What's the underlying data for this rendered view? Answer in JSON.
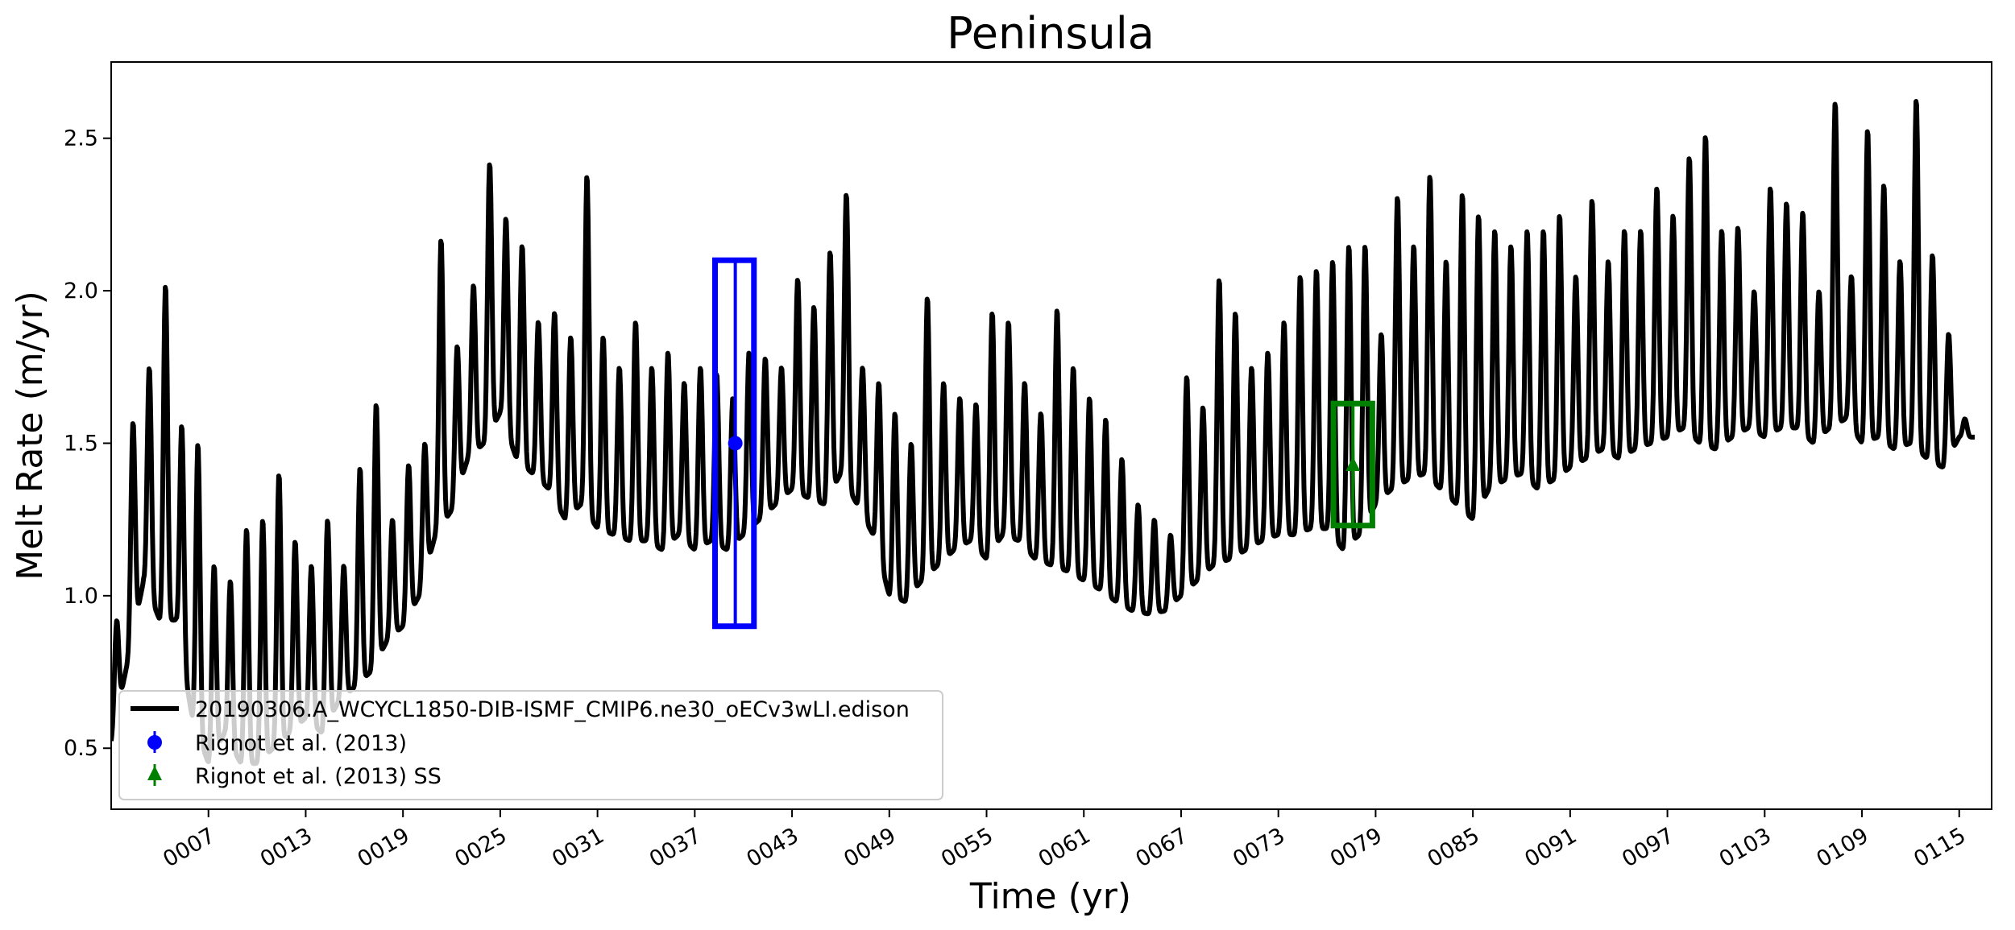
{
  "chart_data": {
    "type": "line",
    "title": "Peninsula",
    "xlabel": "Time (yr)",
    "ylabel": "Melt Rate (m/yr)",
    "xlim": [
      1,
      117
    ],
    "ylim": [
      0.3,
      2.75
    ],
    "yticks": [
      0.5,
      1.0,
      1.5,
      2.0,
      2.5
    ],
    "ytick_labels": [
      "0.5",
      "1.0",
      "1.5",
      "2.0",
      "2.5"
    ],
    "xticks": [
      7,
      13,
      19,
      25,
      31,
      37,
      43,
      49,
      55,
      61,
      67,
      73,
      79,
      85,
      91,
      97,
      103,
      109,
      115
    ],
    "xtick_labels": [
      "0007",
      "0013",
      "0019",
      "0025",
      "0031",
      "0037",
      "0043",
      "0049",
      "0055",
      "0061",
      "0067",
      "0073",
      "0079",
      "0085",
      "0091",
      "0097",
      "0103",
      "0109",
      "0115"
    ],
    "series": [
      {
        "name": "20190306.A_WCYCL1850-DIB-ISMF_CMIP6.ne30_oECv3wLI.edison",
        "color": "#000000",
        "year_start": 1,
        "annual_peak": [
          0.92,
          1.57,
          1.75,
          2.02,
          1.56,
          1.5,
          1.1,
          1.05,
          1.22,
          1.25,
          1.4,
          1.18,
          1.1,
          1.25,
          1.1,
          1.42,
          1.63,
          1.25,
          1.43,
          1.5,
          2.17,
          1.82,
          2.02,
          2.42,
          2.24,
          2.15,
          1.9,
          1.93,
          1.85,
          2.38,
          1.85,
          1.75,
          1.9,
          1.75,
          1.8,
          1.7,
          1.75,
          1.73,
          1.65,
          1.8,
          1.78,
          1.75,
          2.04,
          1.95,
          2.13,
          2.32,
          1.75,
          1.7,
          1.6,
          1.5,
          1.98,
          1.7,
          1.65,
          1.63,
          1.93,
          1.9,
          1.7,
          1.6,
          1.94,
          1.75,
          1.65,
          1.58,
          1.45,
          1.3,
          1.25,
          1.2,
          1.72,
          1.62,
          2.04,
          1.93,
          1.75,
          1.8,
          1.9,
          2.05,
          2.07,
          2.1,
          2.15,
          2.15,
          1.86,
          2.31,
          2.15,
          2.38,
          2.1,
          2.32,
          2.25,
          2.2,
          2.15,
          2.2,
          2.2,
          2.25,
          2.05,
          2.3,
          2.1,
          2.2,
          2.2,
          2.34,
          2.25,
          2.44,
          2.51,
          2.2,
          2.21,
          2.0,
          2.34,
          2.29,
          2.26,
          2.0,
          2.62,
          2.05,
          2.53,
          2.35,
          2.1,
          2.63,
          2.12,
          1.86,
          1.58
        ],
        "annual_trough": [
          0.52,
          0.78,
          1.05,
          0.92,
          0.92,
          0.6,
          0.45,
          0.55,
          0.45,
          0.45,
          0.5,
          0.55,
          0.6,
          0.55,
          0.65,
          0.7,
          0.75,
          0.85,
          0.9,
          1.0,
          1.2,
          1.28,
          1.45,
          1.5,
          1.6,
          1.45,
          1.4,
          1.35,
          1.25,
          1.3,
          1.22,
          1.2,
          1.18,
          1.18,
          1.15,
          1.2,
          1.15,
          1.18,
          1.15,
          1.2,
          1.25,
          1.3,
          1.35,
          1.32,
          1.3,
          1.4,
          1.3,
          1.2,
          1.0,
          0.98,
          1.05,
          1.1,
          1.15,
          1.18,
          1.12,
          1.2,
          1.18,
          1.12,
          1.1,
          1.08,
          1.05,
          1.02,
          0.98,
          0.95,
          0.94,
          0.95,
          1.0,
          1.05,
          1.1,
          1.12,
          1.15,
          1.18,
          1.2,
          1.2,
          1.22,
          1.22,
          1.15,
          1.2,
          1.3,
          1.35,
          1.38,
          1.4,
          1.35,
          1.3,
          1.25,
          1.35,
          1.38,
          1.4,
          1.35,
          1.38,
          1.42,
          1.45,
          1.48,
          1.45,
          1.48,
          1.5,
          1.52,
          1.55,
          1.5,
          1.48,
          1.52,
          1.55,
          1.52,
          1.55,
          1.55,
          1.5,
          1.55,
          1.58,
          1.5,
          1.52,
          1.48,
          1.5,
          1.45,
          1.42,
          1.52
        ]
      }
    ],
    "observations": [
      {
        "label": "Rignot et al. (2013)",
        "marker": "circle",
        "color": "#0000ff",
        "x": 39.5,
        "y": 1.5,
        "ymin": 0.9,
        "ymax": 2.1,
        "xmin": 38.25,
        "xmax": 40.65
      },
      {
        "label": "Rignot et al. (2013) SS",
        "marker": "triangle",
        "color": "#008000",
        "x": 77.6,
        "y": 1.43,
        "ymin": 1.23,
        "ymax": 1.63,
        "xmin": 76.4,
        "xmax": 78.8
      }
    ],
    "legend_placement": "lower-left"
  }
}
